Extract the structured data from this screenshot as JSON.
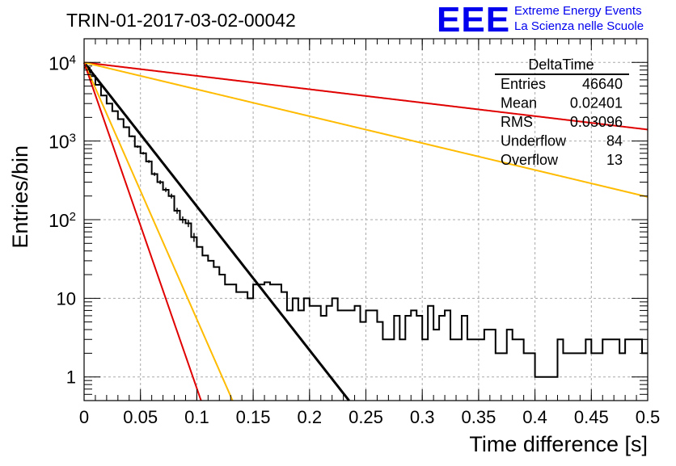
{
  "header": {
    "title": "TRIN-01-2017-03-02-00042",
    "logo_text": "EEE",
    "logo_line1": "Extreme Energy Events",
    "logo_line2": "La Scienza nelle Scuole"
  },
  "stats_box": {
    "title": "DeltaTime",
    "rows": [
      {
        "label": "Entries",
        "value": "46640"
      },
      {
        "label": "Mean",
        "value": "0.02401"
      },
      {
        "label": "RMS",
        "value": "0.03096"
      },
      {
        "label": "Underflow",
        "value": "84"
      },
      {
        "label": "Overflow",
        "value": "13"
      }
    ]
  },
  "colors": {
    "histogram": "#000000",
    "fit": "#000000",
    "red": "#e00000",
    "orange": "#ffbb00",
    "logo": "#0000ee",
    "grid": "#aaaaaa"
  },
  "chart_data": {
    "type": "histogram",
    "title": "TRIN-01-2017-03-02-00042",
    "xlabel": "Time difference [s]",
    "ylabel": "Entries/bin",
    "xlim": [
      0,
      0.5
    ],
    "ylim": [
      0.5,
      20000
    ],
    "yscale": "log",
    "grid": true,
    "x_ticks": [
      "0",
      "0.05",
      "0.1",
      "0.15",
      "0.2",
      "0.25",
      "0.3",
      "0.35",
      "0.4",
      "0.45",
      "0.5"
    ],
    "y_ticks": [
      {
        "value": 1,
        "label": "1"
      },
      {
        "value": 10,
        "label": "10"
      },
      {
        "value": 100,
        "label": "10",
        "sup": "2"
      },
      {
        "value": 1000,
        "label": "10",
        "sup": "3"
      },
      {
        "value": 10000,
        "label": "10",
        "sup": "4"
      }
    ],
    "bin_width": 0.005,
    "bin_start": 0,
    "counts": [
      8500,
      6700,
      5200,
      3800,
      3000,
      2400,
      1900,
      1500,
      1150,
      850,
      700,
      550,
      380,
      300,
      240,
      200,
      130,
      100,
      90,
      60,
      45,
      35,
      30,
      25,
      20,
      15,
      15,
      12,
      12,
      10,
      15,
      15,
      16,
      15,
      15,
      12,
      7,
      10,
      7,
      10,
      8,
      8,
      6,
      8,
      10,
      7,
      7,
      7,
      8,
      5,
      7,
      7,
      5,
      3,
      3,
      6,
      3,
      6,
      7,
      6,
      3,
      8,
      4,
      6,
      7,
      3,
      3,
      6,
      3,
      3,
      3,
      4,
      4,
      2,
      2,
      4,
      3,
      3,
      2,
      2,
      1,
      1,
      1,
      1,
      3,
      2,
      2,
      2,
      2,
      3,
      2,
      2,
      3,
      3,
      3,
      2,
      3,
      3,
      3,
      2,
      0.5
    ],
    "curves": [
      {
        "color_key": "fit",
        "kind": "exp",
        "a": 10000,
        "x_at_one": 0.2186,
        "x_max": 0.5
      },
      {
        "color_key": "orange",
        "kind": "exp",
        "a": 10000,
        "x_at_one": 0.1225,
        "x_max": 0.5
      },
      {
        "color_key": "red",
        "kind": "exp",
        "a": 10000,
        "x_at_one": 0.0965,
        "x_max": 0.5
      },
      {
        "color_key": "red",
        "kind": "exp",
        "a": 10000,
        "x_end": 0.5,
        "y_end": 1400,
        "x_max": 0.5
      },
      {
        "color_key": "orange",
        "kind": "exp",
        "a": 10000,
        "x_end": 0.5,
        "y_end": 195,
        "x_max": 0.5
      }
    ]
  }
}
